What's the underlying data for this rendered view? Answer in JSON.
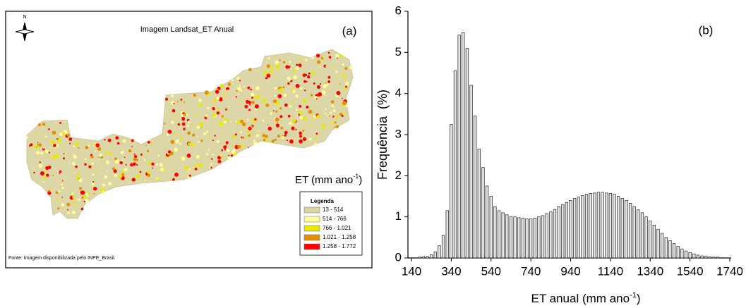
{
  "map_panel": {
    "north": "N",
    "title": "Imagem Landsat_ET Anual",
    "panel_label": "(a)",
    "et_label": [
      "ET (mm ano",
      "-1",
      ")"
    ],
    "legend": {
      "title": "Legenda",
      "items": [
        {
          "label": "13 - 514",
          "color": "#ddd7a8"
        },
        {
          "label": "514 - 766",
          "color": "#ffff99"
        },
        {
          "label": "766 - 1.021",
          "color": "#e8e800"
        },
        {
          "label": "1.021 - 1.258",
          "color": "#e09000"
        },
        {
          "label": "1.258 - 1.772",
          "color": "#ff0000"
        }
      ]
    },
    "source": "Fonte: Imagem disponibilizada pelo INPE_Brasil."
  },
  "chart_data": {
    "type": "bar",
    "annotation": "(b)",
    "y_label": "Frequência  (%)",
    "x_label": [
      "ET anual (mm ano",
      "-1",
      ")"
    ],
    "color": "#e4e4e4",
    "edge_color": "#222222",
    "x": [
      180,
      200,
      220,
      240,
      260,
      280,
      300,
      320,
      340,
      360,
      380,
      400,
      420,
      440,
      460,
      480,
      500,
      520,
      540,
      560,
      580,
      600,
      620,
      640,
      660,
      680,
      700,
      720,
      740,
      760,
      780,
      800,
      820,
      840,
      860,
      880,
      900,
      920,
      940,
      960,
      980,
      1000,
      1020,
      1040,
      1060,
      1080,
      1100,
      1120,
      1140,
      1160,
      1180,
      1200,
      1220,
      1240,
      1260,
      1280,
      1300,
      1320,
      1340,
      1360,
      1380,
      1400,
      1420,
      1440,
      1460,
      1480,
      1500,
      1520,
      1540,
      1560,
      1580,
      1600,
      1620,
      1640,
      1660,
      1680
    ],
    "values": [
      0.02,
      0.03,
      0.04,
      0.08,
      0.15,
      0.3,
      0.55,
      1.15,
      3.25,
      4.55,
      5.42,
      5.48,
      5.1,
      4.2,
      3.45,
      2.65,
      2.2,
      1.75,
      1.5,
      1.25,
      1.15,
      1.1,
      1.05,
      1.0,
      1.0,
      0.98,
      0.97,
      0.95,
      0.95,
      0.97,
      1.0,
      1.03,
      1.08,
      1.12,
      1.18,
      1.25,
      1.3,
      1.35,
      1.4,
      1.45,
      1.48,
      1.52,
      1.55,
      1.57,
      1.58,
      1.6,
      1.6,
      1.58,
      1.57,
      1.55,
      1.5,
      1.45,
      1.4,
      1.33,
      1.25,
      1.17,
      1.1,
      1.0,
      0.9,
      0.8,
      0.7,
      0.6,
      0.5,
      0.42,
      0.35,
      0.28,
      0.22,
      0.17,
      0.13,
      0.1,
      0.07,
      0.05,
      0.04,
      0.03,
      0.02,
      0.02
    ],
    "xlim": [
      140,
      1740
    ],
    "ylim": [
      0,
      6
    ],
    "xticks": [
      140,
      340,
      540,
      740,
      940,
      1140,
      1340,
      1540,
      1740
    ],
    "yticks": [
      0,
      1,
      2,
      3,
      4,
      5,
      6
    ],
    "grid": false
  }
}
